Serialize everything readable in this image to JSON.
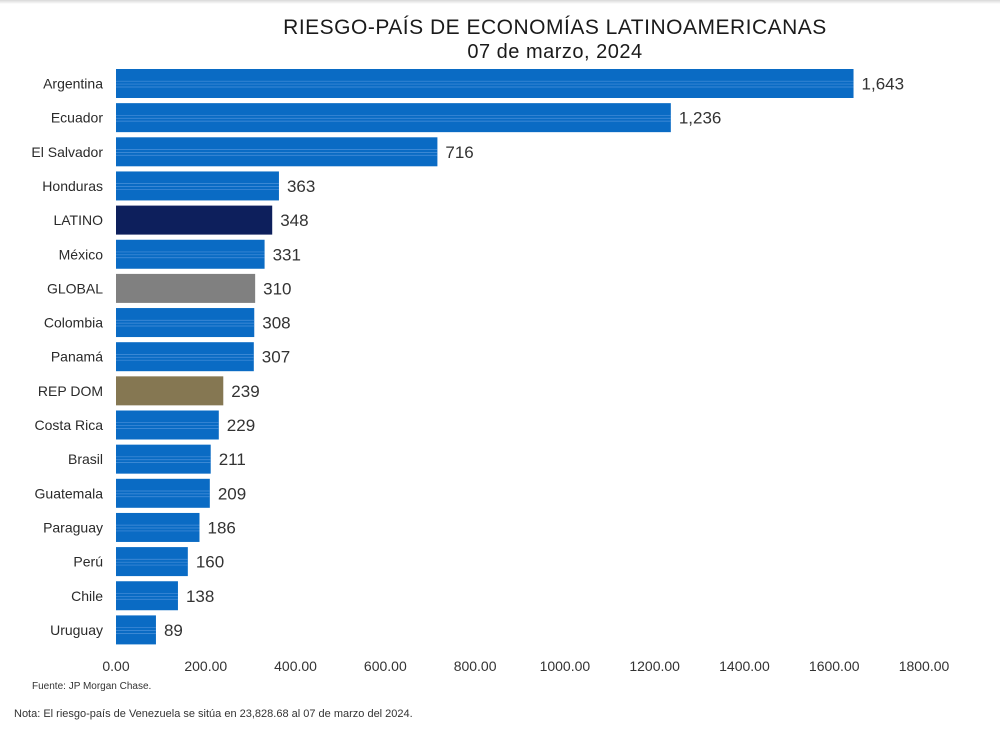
{
  "chart_data": {
    "type": "bar",
    "orientation": "horizontal",
    "title": "RIESGO-PAÍS DE ECONOMÍAS LATINOAMERICANAS",
    "subtitle": "07 de marzo, 2024",
    "categories": [
      "Argentina",
      "Ecuador",
      "El Salvador",
      "Honduras",
      "LATINO",
      "México",
      "GLOBAL",
      "Colombia",
      "Panamá",
      "REP DOM",
      "Costa Rica",
      "Brasil",
      "Guatemala",
      "Paraguay",
      "Perú",
      "Chile",
      "Uruguay"
    ],
    "values": [
      1643,
      1236,
      716,
      363,
      348,
      331,
      310,
      308,
      307,
      239,
      229,
      211,
      209,
      186,
      160,
      138,
      89
    ],
    "value_labels": [
      "1,643",
      "1,236",
      "716",
      "363",
      "348",
      "331",
      "310",
      "308",
      "307",
      "239",
      "229",
      "211",
      "209",
      "186",
      "160",
      "138",
      "89"
    ],
    "bar_colors": [
      "#0a6bc4",
      "#0a6bc4",
      "#0a6bc4",
      "#0a6bc4",
      "#0d1f5c",
      "#0a6bc4",
      "#808080",
      "#0a6bc4",
      "#0a6bc4",
      "#857752",
      "#0a6bc4",
      "#0a6bc4",
      "#0a6bc4",
      "#0a6bc4",
      "#0a6bc4",
      "#0a6bc4",
      "#0a6bc4"
    ],
    "xlim": [
      0,
      1800
    ],
    "x_ticks": [
      0,
      200,
      400,
      600,
      800,
      1000,
      1200,
      1400,
      1600,
      1800
    ],
    "x_tick_labels": [
      "0.00",
      "200.00",
      "400.00",
      "600.00",
      "800.00",
      "1000.00",
      "1200.00",
      "1400.00",
      "1600.00",
      "1800.00"
    ],
    "xlabel": "",
    "ylabel": "",
    "grid": false,
    "legend": "none"
  },
  "footer": {
    "source": "Fuente: JP Morgan Chase.",
    "note": "Nota: El riesgo-país de Venezuela se sitúa en 23,828.68 al 07 de marzo del 2024."
  }
}
